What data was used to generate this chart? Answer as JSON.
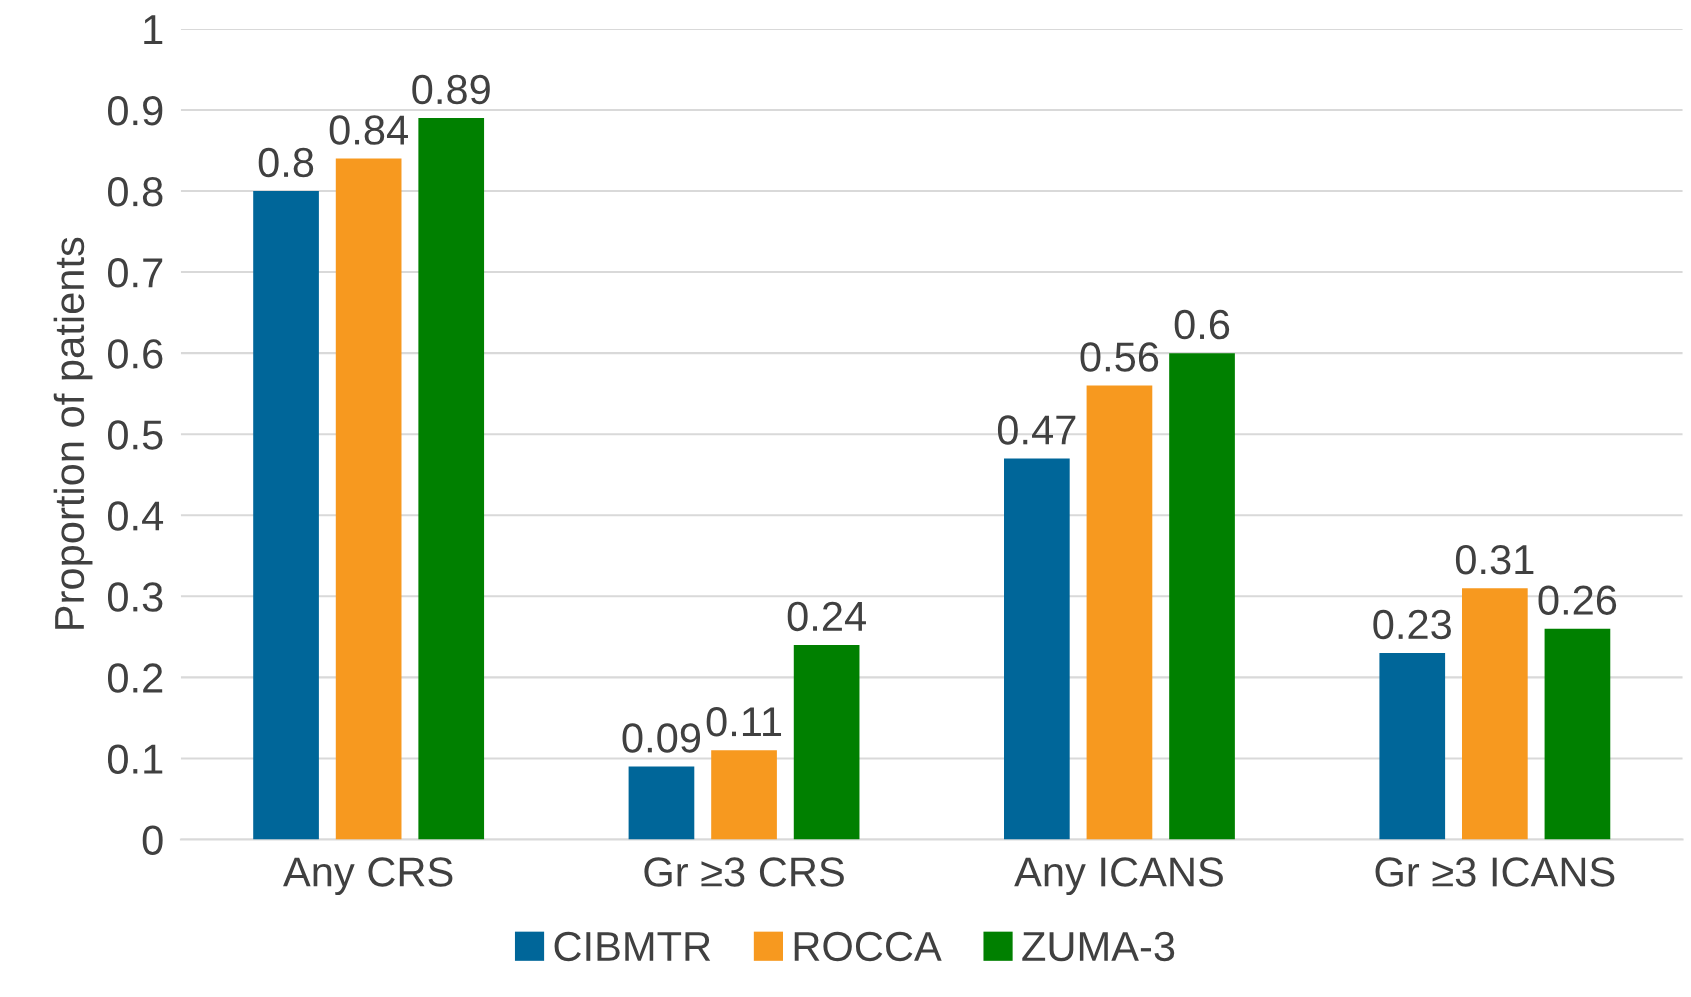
{
  "chart_data": {
    "type": "bar",
    "ylabel": "Proportion of patients",
    "categories": [
      "Any CRS",
      "Gr ≥3 CRS",
      "Any ICANS",
      "Gr ≥3 ICANS"
    ],
    "series": [
      {
        "name": "CIBMTR",
        "color": "#006699",
        "values": [
          0.8,
          0.09,
          0.47,
          0.23
        ]
      },
      {
        "name": "ROCCA",
        "color": "#f7991f",
        "values": [
          0.84,
          0.11,
          0.56,
          0.31
        ]
      },
      {
        "name": "ZUMA-3",
        "color": "#008000",
        "values": [
          0.89,
          0.24,
          0.6,
          0.26
        ]
      }
    ],
    "ylim": [
      0,
      1
    ],
    "yticks": [
      0,
      0.1,
      0.2,
      0.3,
      0.4,
      0.5,
      0.6,
      0.7,
      0.8,
      0.9,
      1
    ],
    "grid": "y",
    "legend": "bottom",
    "data_labels": true
  }
}
